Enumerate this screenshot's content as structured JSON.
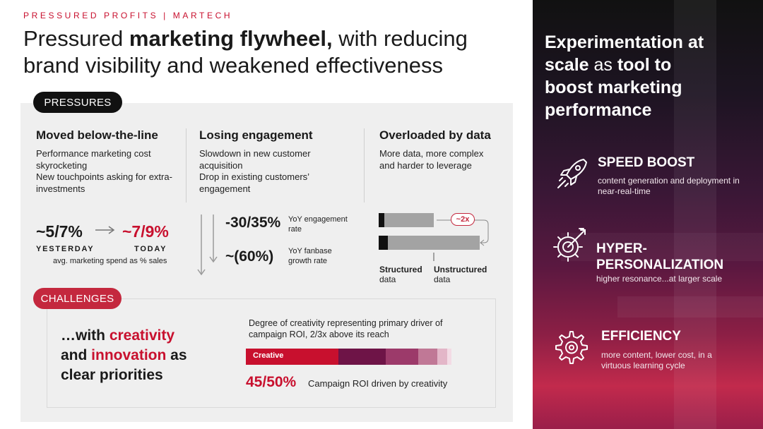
{
  "kicker": "PRESSURED PROFITS | MARTECH",
  "headline": {
    "part1": "Pressured ",
    "bold": "marketing flywheel,",
    "part2": " with reducing brand visibility and weakened effectiveness"
  },
  "pressures": {
    "pill": "PRESSURES",
    "columns": [
      {
        "title": "Moved below-the-line",
        "lines": [
          "Performance marketing cost skyrocketing",
          "New touchpoints asking for extra-investments"
        ]
      },
      {
        "title": "Losing engagement",
        "lines": [
          "Slowdown in new customer acquisition",
          "Drop in existing customers’ engagement"
        ]
      },
      {
        "title": "Overloaded by data",
        "lines": [
          "More data, more complex and harder to leverage"
        ]
      }
    ],
    "spend": {
      "yesterday_value": "~5/7%",
      "today_value": "~7/9%",
      "yesterday_label": "YESTERDAY",
      "today_label": "TODAY",
      "caption": "avg. marketing spend as % sales"
    },
    "engagement": {
      "stat1_value": "-30/35%",
      "stat1_label": "YoY engagement rate",
      "stat2_value": "~(60%)",
      "stat2_label": "YoY fanbase growth rate"
    },
    "data": {
      "multiplier": "~2x",
      "structured_title": "Structured",
      "structured_sub": "data",
      "unstructured_title": "Unstructured",
      "unstructured_sub": "data"
    }
  },
  "challenges": {
    "pill": "CHALLENGES",
    "prio_line1_a": "…with ",
    "prio_line1_b": "creativity",
    "prio_line2_a": "and ",
    "prio_line2_b": "innovation",
    "prio_line2_c": " as",
    "prio_line3": "clear priorities",
    "degree_text": "Degree of creativity representing primary driver of campaign ROI, 2/3x above its reach",
    "bar_label": "Creative",
    "bar_segments": [
      {
        "share": 45,
        "color": "#c8102e"
      },
      {
        "share": 23,
        "color": "#6e1447"
      },
      {
        "share": 16,
        "color": "#9c3a6a"
      },
      {
        "share": 9,
        "color": "#c07896"
      },
      {
        "share": 5,
        "color": "#e3b6c8"
      },
      {
        "share": 2,
        "color": "#f3dbe5"
      }
    ],
    "roi_value": "45/50%",
    "roi_text": "Campaign ROI driven by creativity"
  },
  "right": {
    "title_a": "Experimentation at",
    "title_b1": "scale",
    "title_b2": " as ",
    "title_b3": "tool to",
    "title_c": "boost marketing",
    "title_d": "performance",
    "features": [
      {
        "title": "SPEED BOOST",
        "desc": "content generation and deployment in near-real-time",
        "icon": "rocket-icon"
      },
      {
        "title": "HYPER-PERSONALIZATION",
        "title_line1": "HYPER-",
        "title_line2": "PERSONALIZATION",
        "desc": "higher resonance...at larger scale",
        "icon": "target-gear-icon"
      },
      {
        "title": "EFFICIENCY",
        "desc": "more content, lower cost, in a virtuous learning cycle",
        "icon": "gear-icon"
      }
    ]
  },
  "colors": {
    "accent_red": "#c8102e",
    "dark": "#111111",
    "panel_grey": "#efefef"
  }
}
